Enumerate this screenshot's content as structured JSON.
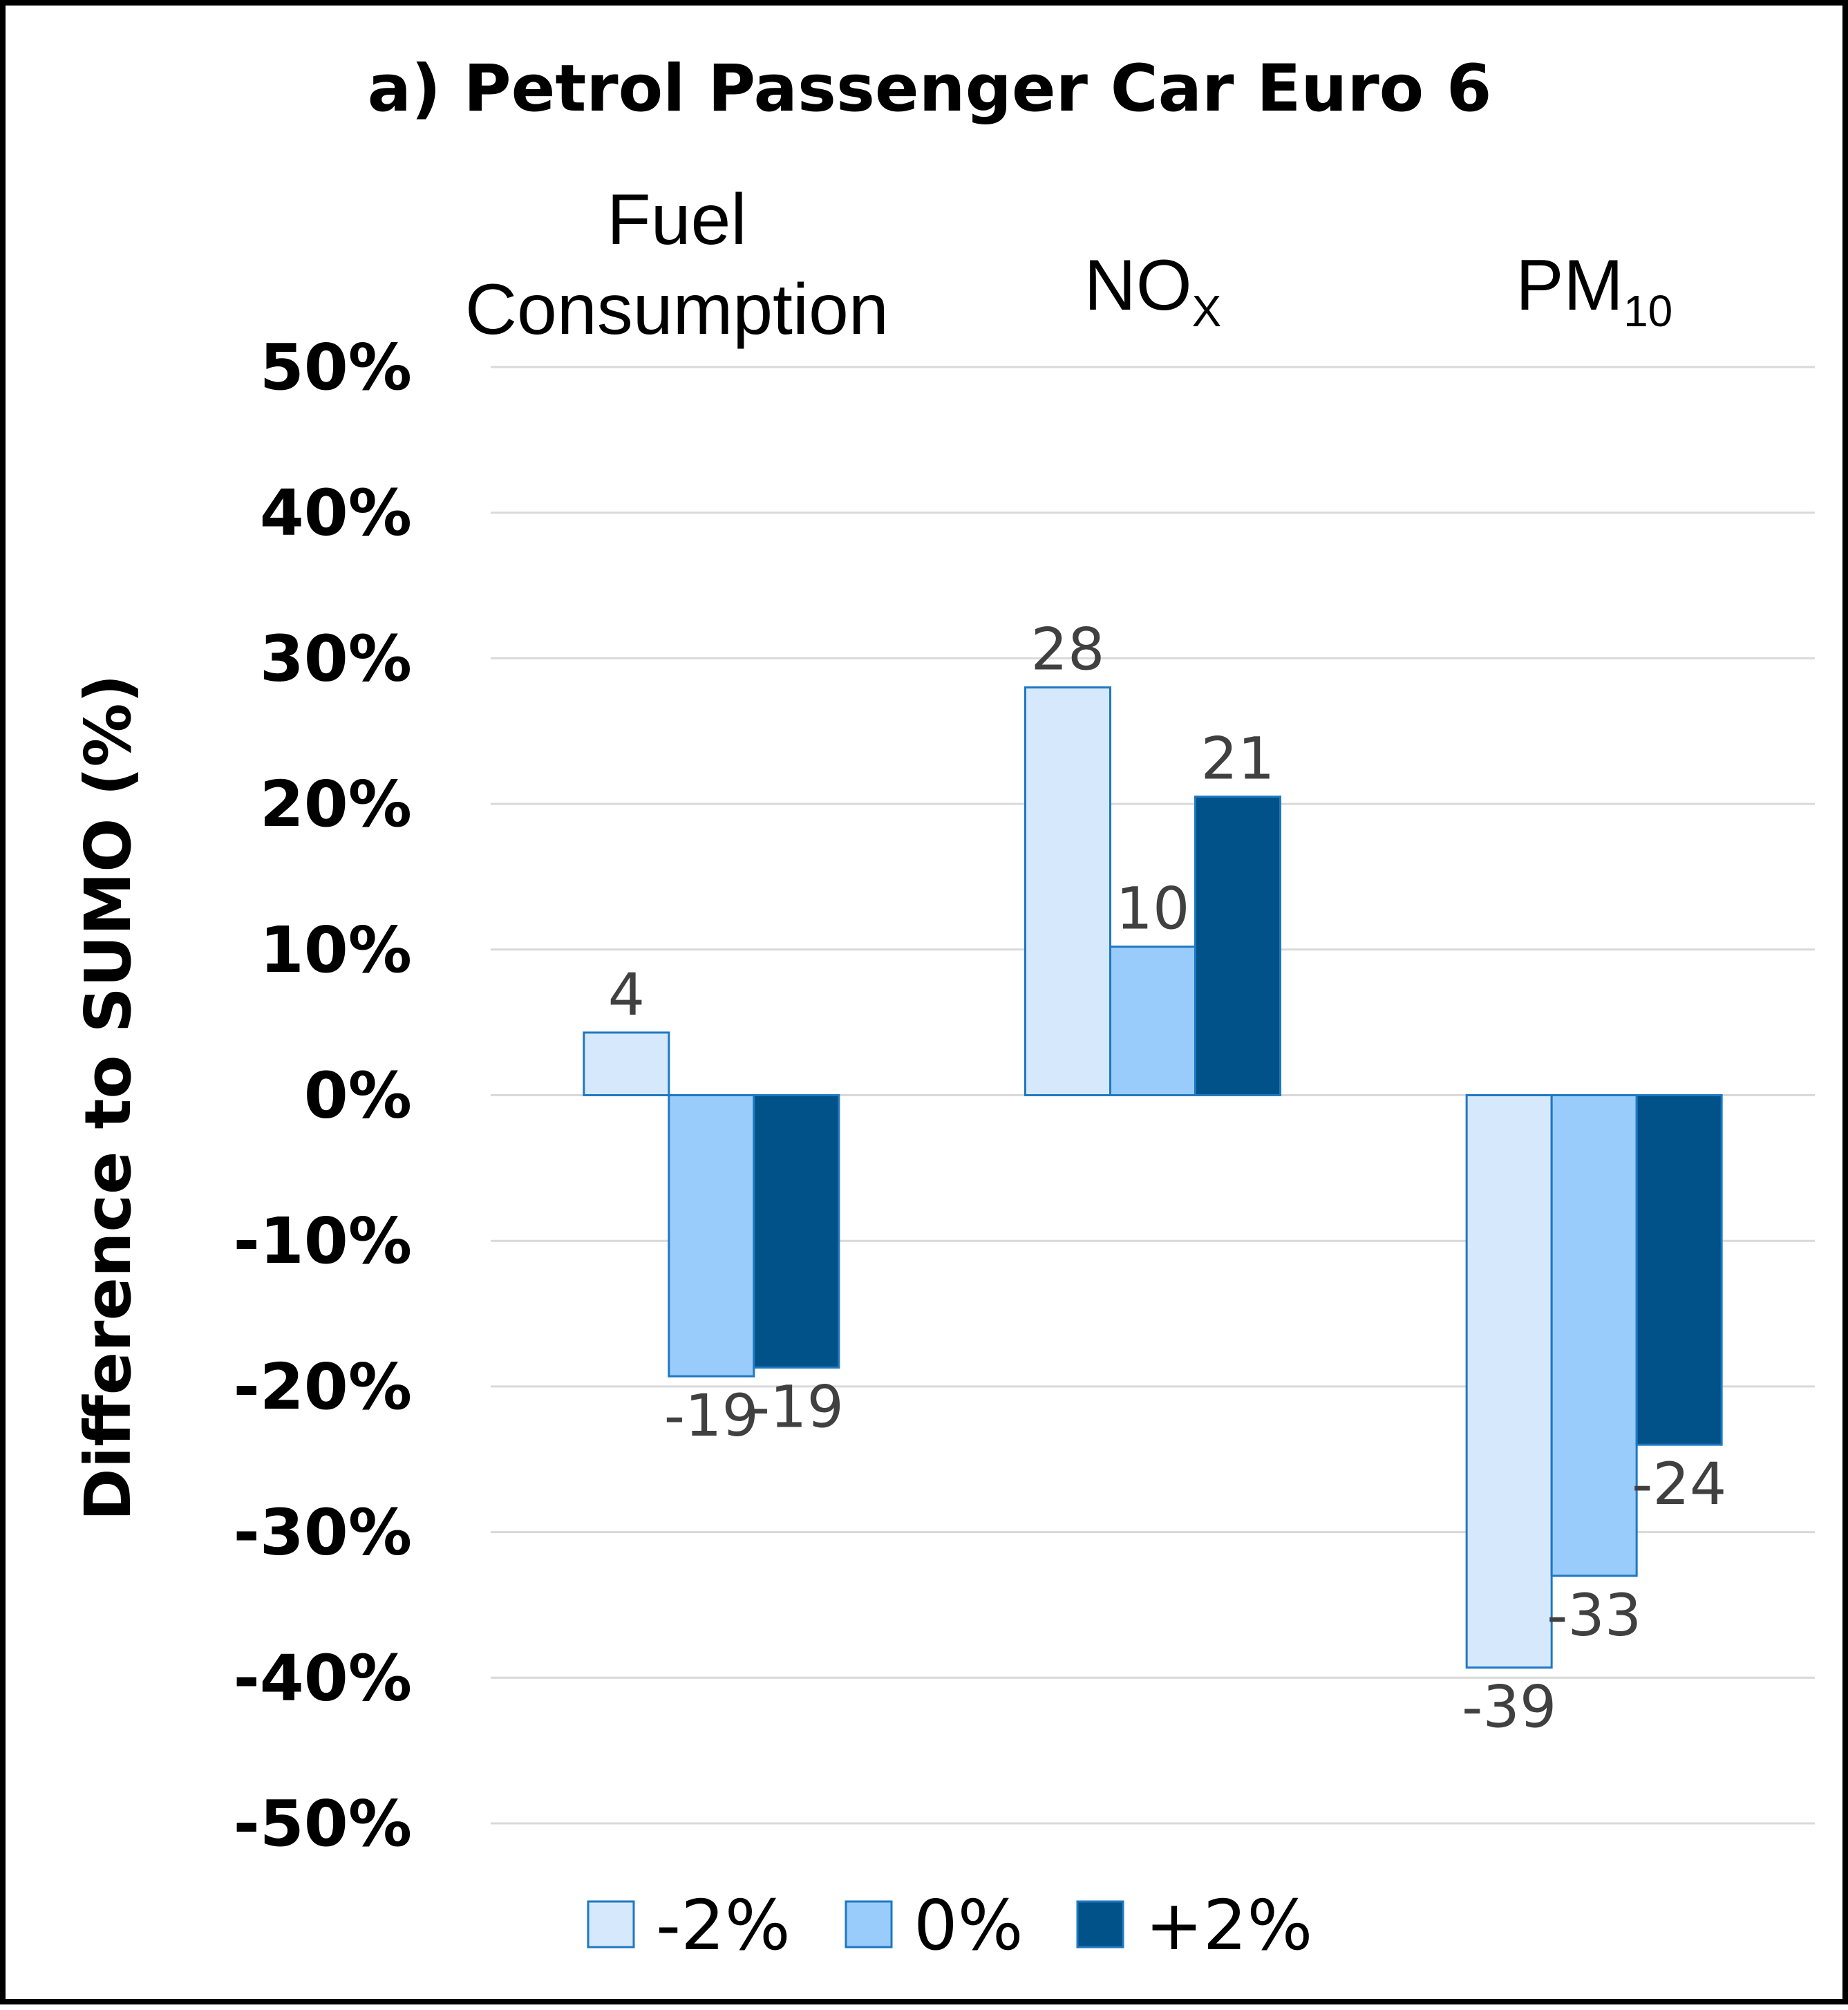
{
  "chart_data": {
    "type": "bar",
    "title": "a) Petrol Passenger Car Euro 6",
    "ylabel": "Difference to SUMO (%)",
    "ylim": [
      -50,
      50
    ],
    "ytick_step": 10,
    "yticks": [
      "50%",
      "40%",
      "30%",
      "20%",
      "10%",
      "0%",
      "-10%",
      "-20%",
      "-30%",
      "-40%",
      "-50%"
    ],
    "grid": true,
    "legend_position": "bottom",
    "categories": [
      {
        "main": "Fuel",
        "main2": "Consumption",
        "sub": ""
      },
      {
        "main": "NO",
        "main2": "",
        "sub": "X"
      },
      {
        "main": "PM",
        "main2": "",
        "sub": "10"
      }
    ],
    "series": [
      {
        "name": "-2%",
        "values": [
          4.3,
          28,
          -39.3
        ],
        "labels": [
          "4",
          "28",
          "-39"
        ],
        "color": "#d6e9fc",
        "stroke": "#1f78c1"
      },
      {
        "name": "0%",
        "values": [
          -19.3,
          10.2,
          -33
        ],
        "labels": [
          "-19",
          "10",
          "-33"
        ],
        "color": "#99cbfb",
        "stroke": "#1f78c1"
      },
      {
        "name": "+2%",
        "values": [
          -18.7,
          20.5,
          -24
        ],
        "labels": [
          "-19",
          "21",
          "-24"
        ],
        "color": "#02528a",
        "stroke": "#1f78c1"
      }
    ]
  }
}
